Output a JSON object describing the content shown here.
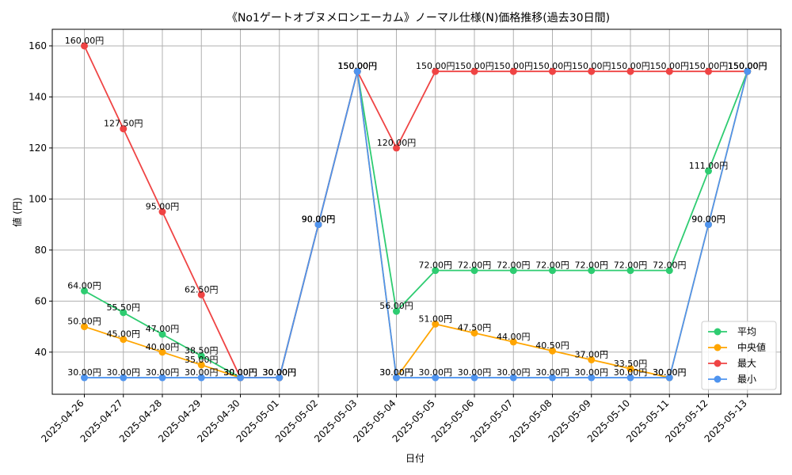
{
  "chart_data": {
    "type": "line",
    "title": "《No1ゲートオブヌメロンエーカム》ノーマル仕様(N)価格推移(過去30日間)",
    "xlabel": "日付",
    "ylabel": "値 (円)",
    "ylim": [
      23.5,
      166.5
    ],
    "yticks": [
      40,
      60,
      80,
      100,
      120,
      140,
      160
    ],
    "grid": true,
    "legend_position": "lower-right",
    "label_suffix": "円",
    "categories": [
      "2025-04-26",
      "2025-04-27",
      "2025-04-28",
      "2025-04-29",
      "2025-04-30",
      "2025-05-01",
      "2025-05-02",
      "2025-05-03",
      "2025-05-04",
      "2025-05-05",
      "2025-05-06",
      "2025-05-07",
      "2025-05-08",
      "2025-05-09",
      "2025-05-10",
      "2025-05-11",
      "2025-05-12",
      "2025-05-13"
    ],
    "series": [
      {
        "name": "平均",
        "color": "#2ecc71",
        "values": [
          64.0,
          55.5,
          47.0,
          38.5,
          30.0,
          30.0,
          90.0,
          150.0,
          56.0,
          72.0,
          72.0,
          72.0,
          72.0,
          72.0,
          72.0,
          72.0,
          111.0,
          150.0
        ]
      },
      {
        "name": "中央値",
        "color": "#ffa500",
        "values": [
          50.0,
          45.0,
          40.0,
          35.0,
          30.0,
          30.0,
          90.0,
          150.0,
          30.0,
          51.0,
          47.5,
          44.0,
          40.5,
          37.0,
          33.5,
          30.0,
          90.0,
          150.0
        ]
      },
      {
        "name": "最大",
        "color": "#ef4444",
        "values": [
          160.0,
          127.5,
          95.0,
          62.5,
          30.0,
          30.0,
          90.0,
          150.0,
          120.0,
          150.0,
          150.0,
          150.0,
          150.0,
          150.0,
          150.0,
          150.0,
          150.0,
          150.0
        ]
      },
      {
        "name": "最小",
        "color": "#4f94ef",
        "values": [
          30.0,
          30.0,
          30.0,
          30.0,
          30.0,
          30.0,
          90.0,
          150.0,
          30.0,
          30.0,
          30.0,
          30.0,
          30.0,
          30.0,
          30.0,
          30.0,
          90.0,
          150.0
        ]
      }
    ]
  }
}
